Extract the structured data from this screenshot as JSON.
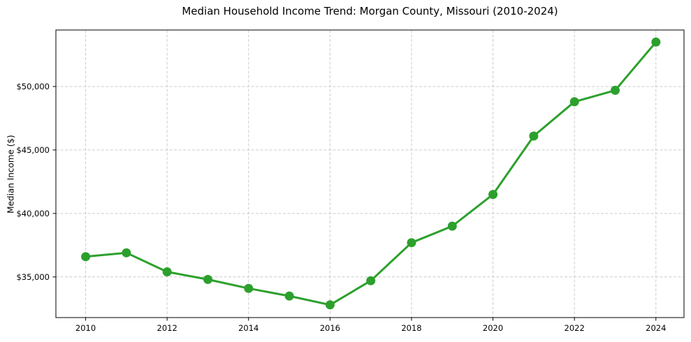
{
  "chart_data": {
    "type": "line",
    "title": "Median Household Income Trend: Morgan County, Missouri (2010-2024)",
    "xlabel": "",
    "ylabel": "Median Income ($)",
    "x": [
      2010,
      2011,
      2012,
      2013,
      2014,
      2015,
      2016,
      2017,
      2018,
      2019,
      2020,
      2021,
      2022,
      2023,
      2024
    ],
    "series": [
      {
        "name": "Median household income",
        "values": [
          36600,
          36900,
          35400,
          34800,
          34100,
          33500,
          32800,
          34700,
          37700,
          39000,
          41500,
          46100,
          48800,
          49700,
          53500
        ]
      }
    ],
    "x_ticks": [
      2010,
      2012,
      2014,
      2016,
      2018,
      2020,
      2022,
      2024
    ],
    "x_tick_labels": [
      "2010",
      "2012",
      "2014",
      "2016",
      "2018",
      "2020",
      "2022",
      "2024"
    ],
    "y_ticks": [
      35000,
      40000,
      45000,
      50000
    ],
    "y_tick_labels": [
      "$35,000",
      "$40,000",
      "$45,000",
      "$50,000"
    ],
    "xlim": [
      2009.27,
      2024.69
    ],
    "ylim": [
      31800,
      54450
    ],
    "grid": true,
    "grid_style": "dashed",
    "legend": "none",
    "marker": "circle",
    "colors": {
      "line": "#2ca02c",
      "marker": "#2ca02c",
      "grid": "#cccccc",
      "spine": "#000000",
      "tick_label": "#000000",
      "title": "#000000",
      "background": "#ffffff"
    }
  }
}
